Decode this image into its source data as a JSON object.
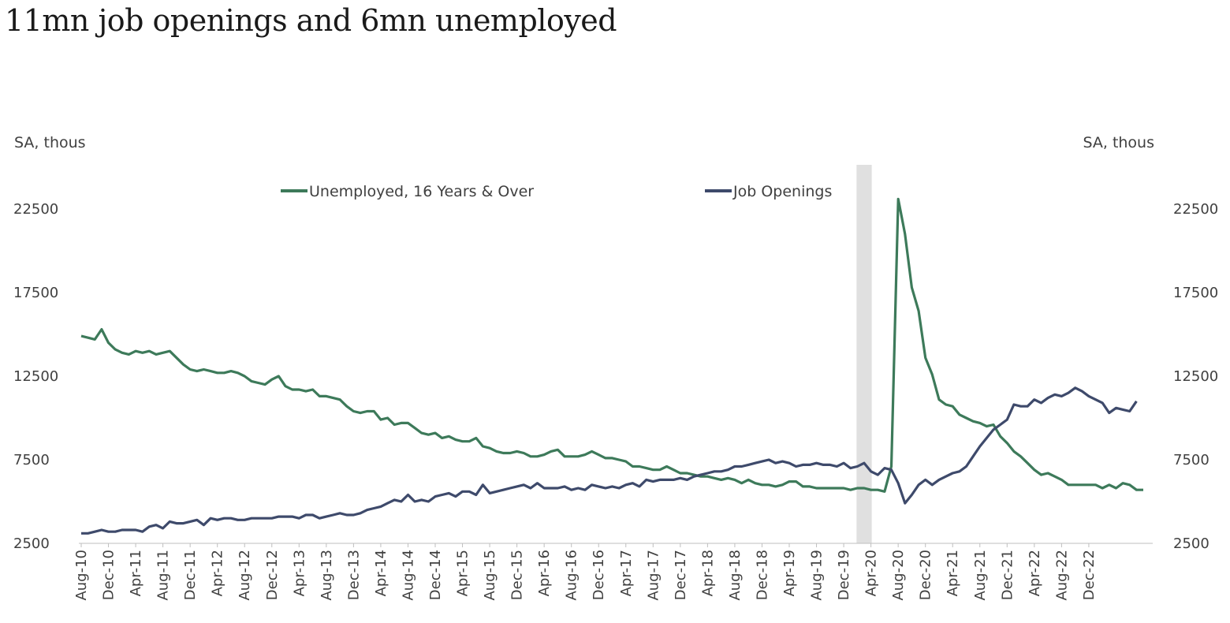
{
  "title": "11mn job openings and 6mn unemployed",
  "chart_data": {
    "type": "line",
    "left_axis_label": "SA, thous",
    "right_axis_label": "SA, thous",
    "ylim": [
      2500,
      25000
    ],
    "yticks": [
      2500,
      7500,
      12500,
      17500,
      22500
    ],
    "x_tick_labels": [
      "Aug-10",
      "Dec-10",
      "Apr-11",
      "Aug-11",
      "Dec-11",
      "Apr-12",
      "Aug-12",
      "Dec-12",
      "Apr-13",
      "Aug-13",
      "Dec-13",
      "Apr-14",
      "Aug-14",
      "Dec-14",
      "Apr-15",
      "Aug-15",
      "Dec-15",
      "Apr-16",
      "Aug-16",
      "Dec-16",
      "Apr-17",
      "Aug-17",
      "Dec-17",
      "Apr-18",
      "Aug-18",
      "Dec-18",
      "Apr-19",
      "Aug-19",
      "Dec-19",
      "Apr-20",
      "Aug-20",
      "Dec-20",
      "Apr-21",
      "Aug-21",
      "Dec-21",
      "Apr-22",
      "Aug-22",
      "Dec-22"
    ],
    "start_month": "Aug-10",
    "recession_shading": [
      "Feb-20",
      "Apr-20"
    ],
    "legend_position": "top-center",
    "series": [
      {
        "name": "Unemployed, 16 Years & Over",
        "color": "#3d7a5a",
        "values": [
          14900,
          14800,
          14700,
          15300,
          14500,
          14100,
          13900,
          13800,
          14000,
          13900,
          14000,
          13800,
          13900,
          14000,
          13600,
          13200,
          12900,
          12800,
          12900,
          12800,
          12700,
          12700,
          12800,
          12700,
          12500,
          12200,
          12100,
          12000,
          12300,
          12500,
          11900,
          11700,
          11700,
          11600,
          11700,
          11300,
          11300,
          11200,
          11100,
          10700,
          10400,
          10300,
          10400,
          10400,
          9900,
          10000,
          9600,
          9700,
          9700,
          9400,
          9100,
          9000,
          9100,
          8800,
          8900,
          8700,
          8600,
          8600,
          8800,
          8300,
          8200,
          8000,
          7900,
          7900,
          8000,
          7900,
          7700,
          7700,
          7800,
          8000,
          8100,
          7700,
          7700,
          7700,
          7800,
          8000,
          7800,
          7600,
          7600,
          7500,
          7400,
          7100,
          7100,
          7000,
          6900,
          6900,
          7100,
          6900,
          6700,
          6700,
          6600,
          6500,
          6500,
          6400,
          6300,
          6400,
          6300,
          6100,
          6300,
          6100,
          6000,
          6000,
          5900,
          6000,
          6200,
          6200,
          5900,
          5900,
          5800,
          5800,
          5800,
          5800,
          5800,
          5700,
          5800,
          5800,
          5700,
          5700,
          5600,
          7100,
          23100,
          21000,
          17800,
          16400,
          13600,
          12600,
          11100,
          10800,
          10700,
          10200,
          10000,
          9800,
          9700,
          9500,
          9600,
          8900,
          8500,
          8000,
          7700,
          7300,
          6900,
          6600,
          6700,
          6500,
          6300,
          6000,
          6000,
          6000,
          6000,
          6000,
          5800,
          6000,
          5800,
          6100,
          6000,
          5700,
          5700
        ]
      },
      {
        "name": "Job Openings",
        "color": "#3e4a6b",
        "values": [
          3100,
          3100,
          3200,
          3300,
          3200,
          3200,
          3300,
          3300,
          3300,
          3200,
          3500,
          3600,
          3400,
          3800,
          3700,
          3700,
          3800,
          3900,
          3600,
          4000,
          3900,
          4000,
          4000,
          3900,
          3900,
          4000,
          4000,
          4000,
          4000,
          4100,
          4100,
          4100,
          4000,
          4200,
          4200,
          4000,
          4100,
          4200,
          4300,
          4200,
          4200,
          4300,
          4500,
          4600,
          4700,
          4900,
          5100,
          5000,
          5400,
          5000,
          5100,
          5000,
          5300,
          5400,
          5500,
          5300,
          5600,
          5600,
          5400,
          6000,
          5500,
          5600,
          5700,
          5800,
          5900,
          6000,
          5800,
          6100,
          5800,
          5800,
          5800,
          5900,
          5700,
          5800,
          5700,
          6000,
          5900,
          5800,
          5900,
          5800,
          6000,
          6100,
          5900,
          6300,
          6200,
          6300,
          6300,
          6300,
          6400,
          6300,
          6500,
          6600,
          6700,
          6800,
          6800,
          6900,
          7100,
          7100,
          7200,
          7300,
          7400,
          7500,
          7300,
          7400,
          7300,
          7100,
          7200,
          7200,
          7300,
          7200,
          7200,
          7100,
          7300,
          7000,
          7100,
          7300,
          6800,
          6600,
          7000,
          6900,
          6100,
          4900,
          5400,
          6000,
          6300,
          6000,
          6300,
          6500,
          6700,
          6800,
          7100,
          7700,
          8300,
          8800,
          9300,
          9600,
          9900,
          10800,
          10700,
          10700,
          11100,
          10900,
          11200,
          11400,
          11300,
          11500,
          11800,
          11600,
          11300,
          11100,
          10900,
          10300,
          10600,
          10500,
          10400,
          11000
        ]
      }
    ]
  }
}
